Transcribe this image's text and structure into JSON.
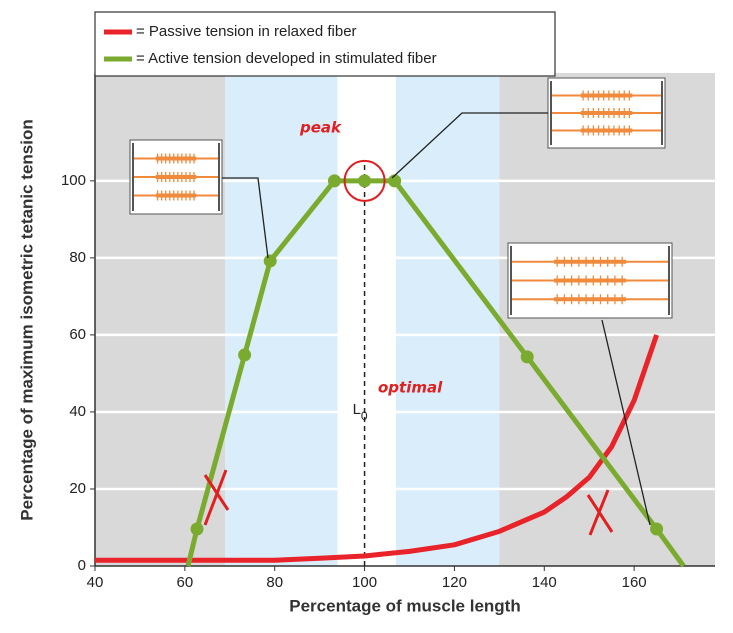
{
  "chart_data": {
    "type": "line",
    "xlabel": "Percentage of muscle length",
    "ylabel": "Percentage of maximum isometric tetanic tension",
    "xlim": [
      40,
      178
    ],
    "ylim": [
      0,
      128
    ],
    "xticks": [
      40,
      60,
      80,
      100,
      120,
      140,
      160
    ],
    "yticks": [
      0,
      20,
      40,
      60,
      80,
      100
    ],
    "grid": true,
    "legend": "top-left",
    "regions": [
      {
        "x0": 40,
        "x1": 69,
        "color": "#d9d9d9"
      },
      {
        "x0": 69,
        "x1": 94,
        "color": "#d9eefa"
      },
      {
        "x0": 94,
        "x1": 107,
        "color": "#ffffff"
      },
      {
        "x0": 107,
        "x1": 130,
        "color": "#d9eefa"
      },
      {
        "x0": 130,
        "x1": 178,
        "color": "#d9d9d9"
      }
    ],
    "reference_line": {
      "x": 100,
      "label": "L",
      "subscript": "0"
    },
    "annotations": [
      "optimal",
      "peak"
    ],
    "series": [
      {
        "name": "= Passive tension in relaxed fiber",
        "color": "#e8232a",
        "x": [
          40,
          60,
          80,
          90,
          100,
          110,
          120,
          130,
          140,
          145,
          150,
          155,
          160,
          165
        ],
        "values": [
          1.5,
          1.5,
          1.5,
          2,
          2.6,
          3.8,
          5.5,
          9,
          14,
          18,
          23,
          31,
          43,
          60
        ]
      },
      {
        "name": "= Active tension developed in stimulated fiber",
        "color": "#7aab2e",
        "x": [
          60.7,
          62.7,
          73.3,
          79,
          93.3,
          100,
          106.7,
          136.2,
          165,
          171
        ],
        "values": [
          0,
          9.6,
          54.8,
          79.2,
          100,
          100,
          100,
          54.3,
          9.6,
          0
        ]
      }
    ]
  }
}
